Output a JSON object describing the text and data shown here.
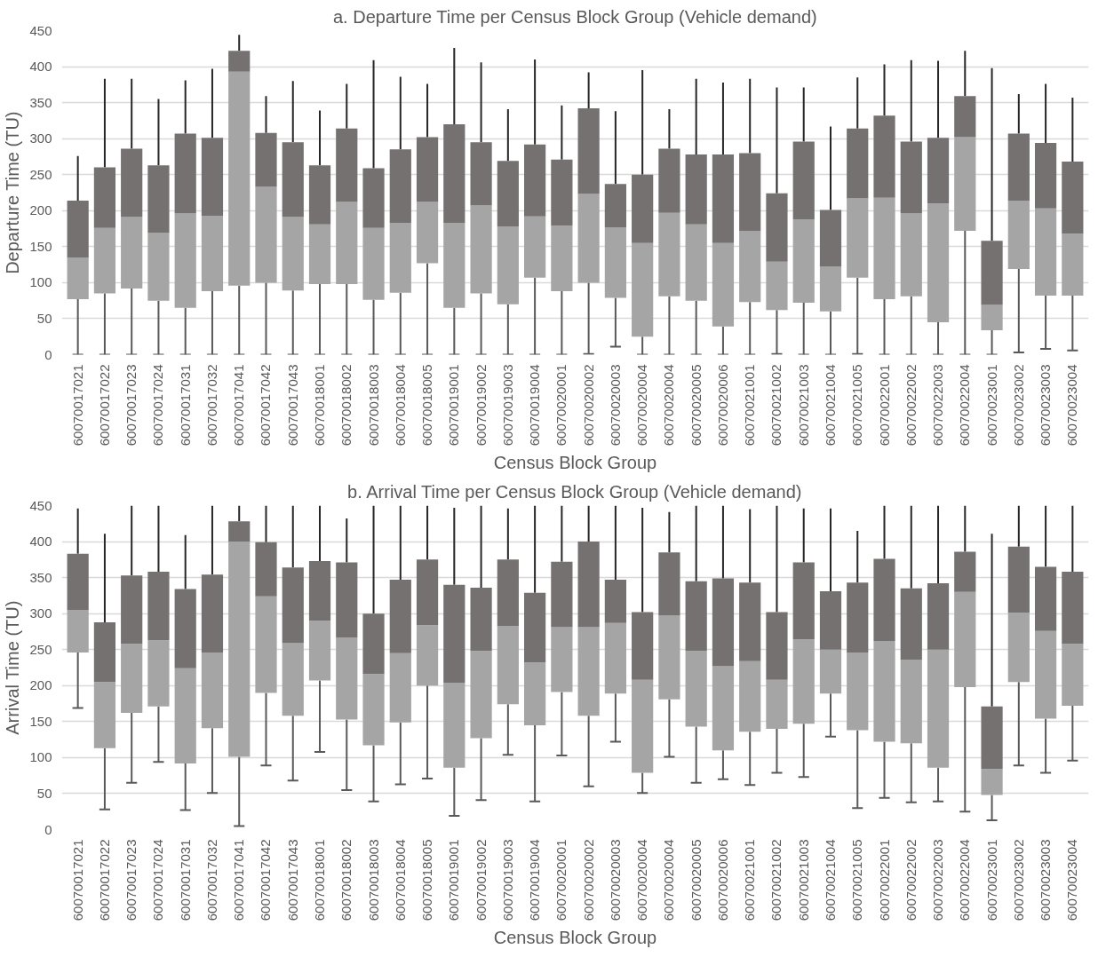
{
  "chart_data": [
    {
      "type": "box",
      "title": "a. Departure Time per Census Block Group (Vehicle demand)",
      "xlabel": "Census Block Group",
      "ylabel": "Departure Time (TU)",
      "categories": [
        "60070017021",
        "60070017022",
        "60070017023",
        "60070017024",
        "60070017031",
        "60070017032",
        "60070017041",
        "60070017042",
        "60070017043",
        "60070018001",
        "60070018002",
        "60070018003",
        "60070018004",
        "60070018005",
        "60070019001",
        "60070019002",
        "60070019003",
        "60070019004",
        "60070020001",
        "60070020002",
        "60070020003",
        "60070020004",
        "60070020004",
        "60070020005",
        "60070020006",
        "60070021001",
        "60070021002",
        "60070021003",
        "60070021004",
        "60070021005",
        "60070022001",
        "60070022002",
        "60070022003",
        "60070022004",
        "60070023001",
        "60070023002",
        "60070023003",
        "60070023004"
      ],
      "ylim": [
        0,
        450
      ],
      "yticks": [
        0,
        50,
        100,
        150,
        200,
        250,
        300,
        350,
        400,
        450
      ],
      "grid": "y",
      "boxes": [
        {
          "low": 0,
          "q1": 77,
          "median": 135,
          "q3": 214,
          "high": 276
        },
        {
          "low": 0,
          "q1": 85,
          "median": 176,
          "q3": 260,
          "high": 383
        },
        {
          "low": 0,
          "q1": 92,
          "median": 191,
          "q3": 286,
          "high": 383
        },
        {
          "low": 0,
          "q1": 75,
          "median": 169,
          "q3": 263,
          "high": 355
        },
        {
          "low": 0,
          "q1": 65,
          "median": 196,
          "q3": 307,
          "high": 381
        },
        {
          "low": 0,
          "q1": 88,
          "median": 193,
          "q3": 301,
          "high": 397
        },
        {
          "low": 0,
          "q1": 96,
          "median": 393,
          "q3": 422,
          "high": 444
        },
        {
          "low": 0,
          "q1": 100,
          "median": 233,
          "q3": 308,
          "high": 359
        },
        {
          "low": 0,
          "q1": 89,
          "median": 191,
          "q3": 295,
          "high": 380
        },
        {
          "low": 0,
          "q1": 98,
          "median": 181,
          "q3": 263,
          "high": 339
        },
        {
          "low": 0,
          "q1": 98,
          "median": 212,
          "q3": 314,
          "high": 376
        },
        {
          "low": 0,
          "q1": 76,
          "median": 176,
          "q3": 259,
          "high": 409
        },
        {
          "low": 0,
          "q1": 86,
          "median": 183,
          "q3": 285,
          "high": 386
        },
        {
          "low": 0,
          "q1": 127,
          "median": 212,
          "q3": 302,
          "high": 376
        },
        {
          "low": 0,
          "q1": 65,
          "median": 183,
          "q3": 320,
          "high": 426
        },
        {
          "low": 0,
          "q1": 85,
          "median": 207,
          "q3": 295,
          "high": 406
        },
        {
          "low": 0,
          "q1": 70,
          "median": 178,
          "q3": 269,
          "high": 341
        },
        {
          "low": 0,
          "q1": 107,
          "median": 192,
          "q3": 292,
          "high": 410
        },
        {
          "low": 0,
          "q1": 88,
          "median": 179,
          "q3": 271,
          "high": 346
        },
        {
          "low": 1,
          "q1": 100,
          "median": 223,
          "q3": 342,
          "high": 392
        },
        {
          "low": 11,
          "q1": 79,
          "median": 177,
          "q3": 237,
          "high": 338
        },
        {
          "low": 0,
          "q1": 25,
          "median": 155,
          "q3": 250,
          "high": 395
        },
        {
          "low": 0,
          "q1": 81,
          "median": 197,
          "q3": 286,
          "high": 341
        },
        {
          "low": 0,
          "q1": 75,
          "median": 181,
          "q3": 278,
          "high": 383
        },
        {
          "low": 0,
          "q1": 39,
          "median": 155,
          "q3": 278,
          "high": 378
        },
        {
          "low": 0,
          "q1": 73,
          "median": 172,
          "q3": 280,
          "high": 383
        },
        {
          "low": 1,
          "q1": 62,
          "median": 129,
          "q3": 224,
          "high": 371
        },
        {
          "low": 0,
          "q1": 72,
          "median": 188,
          "q3": 296,
          "high": 371
        },
        {
          "low": 0,
          "q1": 60,
          "median": 122,
          "q3": 201,
          "high": 317
        },
        {
          "low": 1,
          "q1": 107,
          "median": 217,
          "q3": 314,
          "high": 385
        },
        {
          "low": 0,
          "q1": 77,
          "median": 218,
          "q3": 332,
          "high": 403
        },
        {
          "low": 0,
          "q1": 81,
          "median": 196,
          "q3": 296,
          "high": 409
        },
        {
          "low": 0,
          "q1": 45,
          "median": 210,
          "q3": 301,
          "high": 408
        },
        {
          "low": 0,
          "q1": 172,
          "median": 302,
          "q3": 359,
          "high": 422
        },
        {
          "low": 0,
          "q1": 34,
          "median": 69,
          "q3": 158,
          "high": 398
        },
        {
          "low": 3,
          "q1": 119,
          "median": 214,
          "q3": 307,
          "high": 362
        },
        {
          "low": 8,
          "q1": 82,
          "median": 203,
          "q3": 294,
          "high": 376
        },
        {
          "low": 6,
          "q1": 82,
          "median": 168,
          "q3": 268,
          "high": 357
        }
      ]
    },
    {
      "type": "box",
      "title": "b. Arrival Time per Census Block Group (Vehicle demand)",
      "xlabel": "Census Block Group",
      "ylabel": "Arrival Time (TU)",
      "categories": [
        "60070017021",
        "60070017022",
        "60070017023",
        "60070017024",
        "60070017031",
        "60070017032",
        "60070017041",
        "60070017042",
        "60070017043",
        "60070018001",
        "60070018002",
        "60070018003",
        "60070018004",
        "60070018005",
        "60070019001",
        "60070019002",
        "60070019003",
        "60070019004",
        "60070020001",
        "60070020002",
        "60070020003",
        "60070020004",
        "60070020004",
        "60070020005",
        "60070020006",
        "60070021001",
        "60070021002",
        "60070021003",
        "60070021004",
        "60070021005",
        "60070022001",
        "60070022002",
        "60070022003",
        "60070022004",
        "60070023001",
        "60070023002",
        "60070023003",
        "60070023004"
      ],
      "ylim": [
        0,
        450
      ],
      "yticks": [
        0,
        50,
        100,
        150,
        200,
        250,
        300,
        350,
        400,
        450
      ],
      "grid": "y",
      "boxes": [
        {
          "low": 169,
          "q1": 246,
          "median": 305,
          "q3": 383,
          "high": 446
        },
        {
          "low": 28,
          "q1": 113,
          "median": 205,
          "q3": 288,
          "high": 411
        },
        {
          "low": 65,
          "q1": 162,
          "median": 258,
          "q3": 353,
          "high": 450
        },
        {
          "low": 94,
          "q1": 171,
          "median": 263,
          "q3": 358,
          "high": 450
        },
        {
          "low": 27,
          "q1": 92,
          "median": 224,
          "q3": 334,
          "high": 409
        },
        {
          "low": 51,
          "q1": 141,
          "median": 246,
          "q3": 354,
          "high": 450
        },
        {
          "low": 5,
          "q1": 101,
          "median": 400,
          "q3": 428,
          "high": 450
        },
        {
          "low": 89,
          "q1": 190,
          "median": 324,
          "q3": 399,
          "high": 450
        },
        {
          "low": 68,
          "q1": 158,
          "median": 259,
          "q3": 364,
          "high": 450
        },
        {
          "low": 108,
          "q1": 207,
          "median": 290,
          "q3": 373,
          "high": 450
        },
        {
          "low": 55,
          "q1": 153,
          "median": 267,
          "q3": 371,
          "high": 432
        },
        {
          "low": 39,
          "q1": 117,
          "median": 216,
          "q3": 300,
          "high": 450
        },
        {
          "low": 63,
          "q1": 149,
          "median": 245,
          "q3": 347,
          "high": 450
        },
        {
          "low": 71,
          "q1": 200,
          "median": 284,
          "q3": 375,
          "high": 450
        },
        {
          "low": 19,
          "q1": 86,
          "median": 204,
          "q3": 340,
          "high": 447
        },
        {
          "low": 41,
          "q1": 127,
          "median": 248,
          "q3": 336,
          "high": 450
        },
        {
          "low": 104,
          "q1": 174,
          "median": 283,
          "q3": 375,
          "high": 446
        },
        {
          "low": 39,
          "q1": 145,
          "median": 232,
          "q3": 329,
          "high": 450
        },
        {
          "low": 103,
          "q1": 191,
          "median": 281,
          "q3": 372,
          "high": 450
        },
        {
          "low": 60,
          "q1": 158,
          "median": 281,
          "q3": 400,
          "high": 450
        },
        {
          "low": 122,
          "q1": 189,
          "median": 287,
          "q3": 347,
          "high": 450
        },
        {
          "low": 51,
          "q1": 79,
          "median": 208,
          "q3": 302,
          "high": 447
        },
        {
          "low": 101,
          "q1": 181,
          "median": 297,
          "q3": 385,
          "high": 441
        },
        {
          "low": 65,
          "q1": 143,
          "median": 248,
          "q3": 345,
          "high": 450
        },
        {
          "low": 70,
          "q1": 110,
          "median": 227,
          "q3": 349,
          "high": 450
        },
        {
          "low": 62,
          "q1": 136,
          "median": 234,
          "q3": 343,
          "high": 445
        },
        {
          "low": 79,
          "q1": 140,
          "median": 208,
          "q3": 302,
          "high": 450
        },
        {
          "low": 73,
          "q1": 147,
          "median": 264,
          "q3": 371,
          "high": 446
        },
        {
          "low": 129,
          "q1": 189,
          "median": 250,
          "q3": 331,
          "high": 446
        },
        {
          "low": 30,
          "q1": 138,
          "median": 246,
          "q3": 343,
          "high": 415
        },
        {
          "low": 44,
          "q1": 122,
          "median": 262,
          "q3": 376,
          "high": 450
        },
        {
          "low": 38,
          "q1": 120,
          "median": 236,
          "q3": 335,
          "high": 450
        },
        {
          "low": 39,
          "q1": 86,
          "median": 250,
          "q3": 342,
          "high": 450
        },
        {
          "low": 25,
          "q1": 198,
          "median": 330,
          "q3": 386,
          "high": 450
        },
        {
          "low": 13,
          "q1": 48,
          "median": 84,
          "q3": 171,
          "high": 411
        },
        {
          "low": 89,
          "q1": 205,
          "median": 301,
          "q3": 393,
          "high": 450
        },
        {
          "low": 79,
          "q1": 154,
          "median": 276,
          "q3": 365,
          "high": 450
        },
        {
          "low": 96,
          "q1": 172,
          "median": 258,
          "q3": 358,
          "high": 450
        }
      ]
    }
  ]
}
